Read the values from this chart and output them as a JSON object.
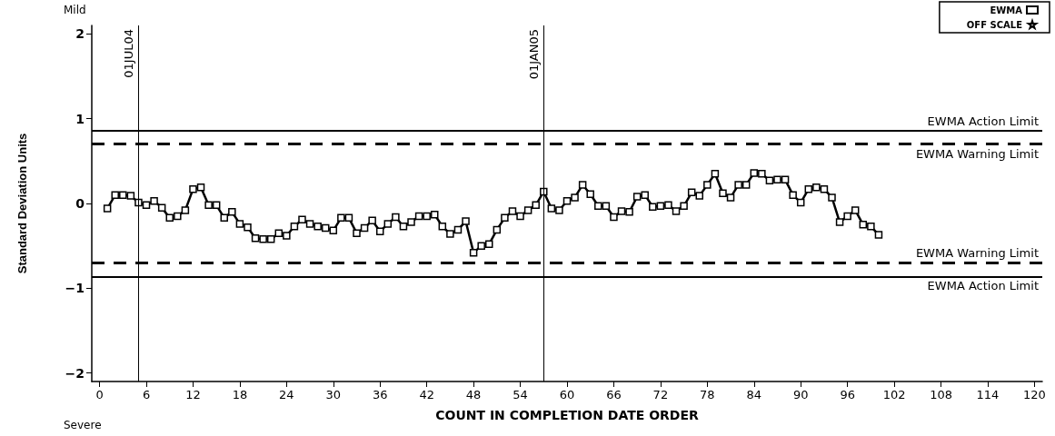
{
  "chart_data": {
    "type": "line",
    "xlabel": "COUNT IN COMPLETION DATE ORDER",
    "ylabel": "Standard Deviation Units",
    "annotations": [
      "Mild",
      "Severe"
    ],
    "x": [
      1,
      2,
      3,
      4,
      5,
      6,
      7,
      8,
      9,
      10,
      11,
      12,
      13,
      14,
      15,
      16,
      17,
      18,
      19,
      20,
      21,
      22,
      23,
      24,
      25,
      26,
      27,
      28,
      29,
      30,
      31,
      32,
      33,
      34,
      35,
      36,
      37,
      38,
      39,
      40,
      41,
      42,
      43,
      44,
      45,
      46,
      47,
      48,
      49,
      50,
      51,
      52,
      53,
      54,
      55,
      56,
      57,
      58,
      59,
      60,
      61,
      62,
      63,
      64,
      65,
      66,
      67,
      68,
      69,
      70,
      71,
      72,
      73,
      74,
      75,
      76,
      77,
      78,
      79,
      80,
      81,
      82,
      83,
      84,
      85,
      86,
      87,
      88,
      89,
      90,
      91,
      92,
      93,
      94,
      95,
      96,
      97,
      98,
      99,
      100
    ],
    "series": [
      {
        "name": "EWMA",
        "color": "#000000",
        "marker": "square",
        "line_style": "solid",
        "values": [
          -0.06,
          0.1,
          0.1,
          0.09,
          0.01,
          -0.02,
          0.03,
          -0.05,
          -0.17,
          -0.15,
          -0.08,
          0.17,
          0.19,
          -0.02,
          -0.02,
          -0.17,
          -0.1,
          -0.24,
          -0.28,
          -0.41,
          -0.42,
          -0.42,
          -0.35,
          -0.38,
          -0.27,
          -0.19,
          -0.24,
          -0.27,
          -0.29,
          -0.32,
          -0.17,
          -0.17,
          -0.35,
          -0.29,
          -0.2,
          -0.33,
          -0.24,
          -0.16,
          -0.27,
          -0.22,
          -0.15,
          -0.15,
          -0.13,
          -0.27,
          -0.36,
          -0.31,
          -0.21,
          -0.58,
          -0.5,
          -0.48,
          -0.31,
          -0.17,
          -0.09,
          -0.15,
          -0.08,
          -0.02,
          0.14,
          -0.06,
          -0.08,
          0.03,
          0.07,
          0.22,
          0.11,
          -0.03,
          -0.03,
          -0.16,
          -0.09,
          -0.1,
          0.08,
          0.1,
          -0.04,
          -0.03,
          -0.02,
          -0.09,
          -0.03,
          0.13,
          0.09,
          0.22,
          0.35,
          0.12,
          0.07,
          0.22,
          0.22,
          0.36,
          0.35,
          0.27,
          0.28,
          0.28,
          0.1,
          0.01,
          0.17,
          0.19,
          0.17,
          0.07,
          -0.22,
          -0.15,
          -0.08,
          -0.25,
          -0.27,
          -0.37
        ]
      },
      {
        "name": "OFF SCALE",
        "color": "#000000",
        "marker": "star",
        "values": [
          null,
          null,
          null,
          null,
          null,
          null,
          null,
          null,
          null,
          null,
          null,
          null,
          null,
          null,
          null,
          null,
          null,
          null,
          null,
          null,
          null,
          null,
          null,
          null,
          null,
          null,
          null,
          null,
          null,
          null,
          null,
          null,
          null,
          null,
          null,
          null,
          null,
          null,
          null,
          null,
          null,
          null,
          null,
          null,
          null,
          null,
          null,
          null,
          null,
          null,
          null,
          null,
          null,
          null,
          null,
          null,
          null,
          null,
          null,
          null,
          null,
          null,
          null,
          null,
          null,
          null,
          null,
          null,
          null,
          null,
          null,
          null,
          null,
          null,
          null,
          null,
          null,
          null,
          null,
          null,
          null,
          null,
          null,
          null,
          null,
          null,
          null,
          null,
          null,
          null,
          null,
          null,
          null,
          null,
          null,
          null,
          null,
          null,
          null,
          null
        ]
      }
    ],
    "xlim": [
      -1,
      121
    ],
    "xticks": [
      0,
      6,
      12,
      18,
      24,
      30,
      36,
      42,
      48,
      54,
      60,
      66,
      72,
      78,
      84,
      90,
      96,
      102,
      108,
      114,
      120
    ],
    "ylim": [
      -2.1,
      2.1
    ],
    "yticks": [
      {
        "value": -2,
        "label": "−2"
      },
      {
        "value": -1,
        "label": "−1"
      },
      0,
      1,
      2
    ],
    "ref_lines": [
      {
        "axis": "y",
        "value": 0.86,
        "label": "EWMA Action Limit",
        "line_style": "solid"
      },
      {
        "axis": "y",
        "value": 0.7,
        "label": "EWMA Warning Limit",
        "line_style": "dashed"
      },
      {
        "axis": "y",
        "value": -0.7,
        "label": "EWMA Warning Limit",
        "line_style": "dashed"
      },
      {
        "axis": "y",
        "value": -0.86,
        "label": "EWMA Action Limit",
        "line_style": "solid"
      },
      {
        "axis": "x",
        "value": 5,
        "label": "01JUL04",
        "line_style": "solid"
      },
      {
        "axis": "x",
        "value": 57,
        "label": "01JAN05",
        "line_style": "solid"
      }
    ],
    "grid": false,
    "legend": "top right"
  }
}
